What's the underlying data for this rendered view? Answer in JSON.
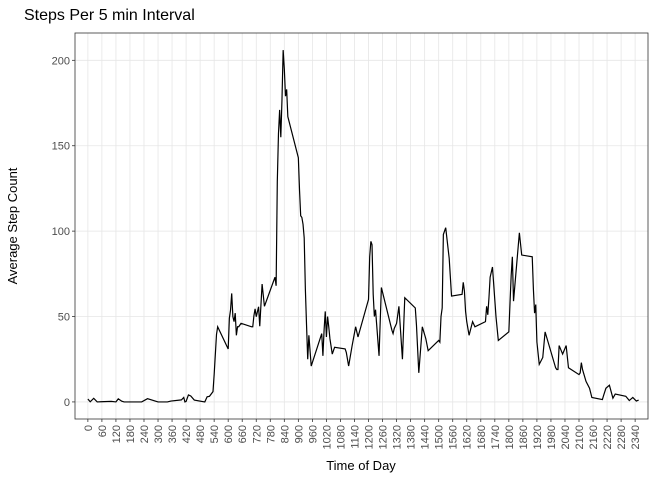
{
  "chart_data": {
    "type": "line",
    "title": "Steps Per 5 min Interval",
    "x_label": "Time of Day",
    "y_label": "Average Step Count",
    "x": [
      0,
      10,
      25,
      40,
      55,
      100,
      120,
      130,
      145,
      155,
      200,
      230,
      255,
      300,
      340,
      355,
      400,
      410,
      415,
      420,
      430,
      440,
      455,
      500,
      510,
      520,
      535,
      540,
      550,
      555,
      600,
      605,
      610,
      615,
      620,
      625,
      630,
      635,
      640,
      645,
      655,
      700,
      705,
      710,
      715,
      720,
      730,
      735,
      745,
      755,
      800,
      805,
      810,
      815,
      820,
      825,
      830,
      835,
      840,
      845,
      850,
      855,
      900,
      905,
      910,
      915,
      920,
      925,
      930,
      935,
      940,
      945,
      955,
      1000,
      1005,
      1010,
      1015,
      1020,
      1025,
      1030,
      1035,
      1045,
      1055,
      1100,
      1105,
      1115,
      1130,
      1145,
      1155,
      1200,
      1205,
      1210,
      1215,
      1220,
      1225,
      1230,
      1245,
      1255,
      1300,
      1305,
      1310,
      1320,
      1330,
      1345,
      1355,
      1400,
      1405,
      1415,
      1430,
      1445,
      1455,
      1500,
      1505,
      1510,
      1515,
      1520,
      1530,
      1545,
      1555,
      1600,
      1605,
      1610,
      1615,
      1620,
      1630,
      1645,
      1655,
      1700,
      1705,
      1710,
      1715,
      1720,
      1730,
      1745,
      1755,
      1800,
      1805,
      1810,
      1815,
      1820,
      1830,
      1845,
      1855,
      1900,
      1905,
      1910,
      1915,
      1920,
      1930,
      1945,
      1955,
      2000,
      2005,
      2010,
      2015,
      2030,
      2045,
      2055,
      2100,
      2105,
      2110,
      2115,
      2130,
      2145,
      2155,
      2200,
      2205,
      2215,
      2230,
      2245,
      2255,
      2300,
      2315,
      2330,
      2345,
      2355
    ],
    "series": [
      {
        "color": "#000000",
        "values": [
          1.7,
          0.1,
          2.1,
          0,
          0.1,
          0.3,
          0,
          1.8,
          0.4,
          0,
          0,
          0,
          1.9,
          0,
          0,
          0.5,
          1.2,
          2.6,
          0,
          0.3,
          4.1,
          3.5,
          1.1,
          0,
          3,
          3.3,
          6,
          16,
          39.5,
          44,
          31,
          49,
          53.8,
          63.5,
          50,
          47,
          52,
          39,
          44,
          44,
          46,
          44,
          44,
          50.5,
          54.5,
          49.9,
          55.7,
          44.3,
          69,
          56,
          73,
          68,
          129,
          157,
          171,
          155,
          177,
          206,
          195,
          179,
          183,
          167,
          143,
          124,
          109,
          108,
          104,
          96,
          66,
          45,
          25,
          39,
          21,
          40,
          27,
          42,
          53,
          38,
          50,
          44,
          37,
          28,
          32,
          31,
          29,
          21,
          33,
          44,
          38,
          60,
          85,
          94,
          92,
          63,
          50,
          54,
          27,
          67,
          42,
          40,
          43,
          46,
          56,
          25,
          61,
          55,
          45,
          17,
          44,
          37,
          30,
          36,
          35,
          50,
          55,
          98,
          102,
          84,
          62,
          63,
          70,
          65,
          53,
          47,
          39,
          47,
          44,
          47,
          56,
          51,
          61,
          73,
          79,
          50,
          36,
          41,
          58,
          74,
          85,
          59,
          75,
          99,
          86,
          85,
          66,
          52,
          57,
          35,
          22,
          26,
          41,
          20,
          19,
          19,
          33,
          28,
          33,
          20,
          16,
          17,
          23,
          19,
          12,
          8,
          2.6,
          1.4,
          3.7,
          8,
          9.8,
          2.2,
          4.6,
          3.3,
          0.8,
          2.6,
          0.5,
          1.1
        ]
      }
    ],
    "xlim": [
      -55,
      2395
    ],
    "ylim": [
      -10,
      216
    ],
    "xticks": [
      0,
      60,
      120,
      180,
      240,
      300,
      360,
      420,
      480,
      540,
      600,
      660,
      720,
      780,
      840,
      900,
      960,
      1020,
      1080,
      1140,
      1200,
      1260,
      1320,
      1380,
      1440,
      1500,
      1560,
      1620,
      1680,
      1740,
      1800,
      1860,
      1920,
      1980,
      2040,
      2100,
      2160,
      2220,
      2280,
      2340
    ],
    "yticks": [
      0,
      50,
      100,
      150,
      200
    ],
    "grid": true
  }
}
